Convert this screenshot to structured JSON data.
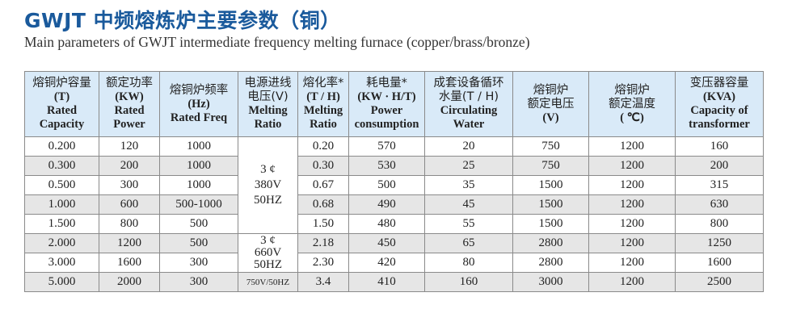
{
  "title": "GWJT 中频熔炼炉主要参数（铜）",
  "subtitle": "Main parameters of GWJT intermediate frequency melting furnace (copper/brass/bronze)",
  "table": {
    "headers": [
      {
        "cn": "熔铜炉容量",
        "lines": [
          "(T)",
          "Rated",
          "Capacity"
        ]
      },
      {
        "cn": "额定功率",
        "lines": [
          "(KW)",
          "Rated",
          "Power"
        ]
      },
      {
        "cn": "熔铜炉频率",
        "lines": [
          "(Hz)",
          "Rated Freq"
        ]
      },
      {
        "cn": "电源进线",
        "lines": [
          "电压(V)",
          "Melting",
          "Ratio"
        ]
      },
      {
        "cn": "熔化率*",
        "lines": [
          "(T / H)",
          "Melting",
          "Ratio"
        ]
      },
      {
        "cn": "耗电量*",
        "lines": [
          "(KW · H/T)",
          "Power",
          "consumption"
        ]
      },
      {
        "cn": "成套设备循环",
        "lines": [
          "水量(T / H)",
          "Circulating",
          "Water"
        ]
      },
      {
        "cn": "熔铜炉",
        "lines": [
          "额定电压",
          "(V)"
        ]
      },
      {
        "cn": "熔铜炉",
        "lines": [
          "额定温度",
          "( ℃)"
        ]
      },
      {
        "cn": "变压器容量",
        "lines": [
          "(KVA)",
          "Capacity of",
          "transformer"
        ]
      }
    ],
    "rows": [
      [
        "0.200",
        "120",
        "1000",
        "0.20",
        "570",
        "20",
        "750",
        "1200",
        "160"
      ],
      [
        "0.300",
        "200",
        "1000",
        "0.30",
        "530",
        "25",
        "750",
        "1200",
        "200"
      ],
      [
        "0.500",
        "300",
        "1000",
        "0.67",
        "500",
        "35",
        "1500",
        "1200",
        "315"
      ],
      [
        "1.000",
        "600",
        "500-1000",
        "0.68",
        "490",
        "45",
        "1500",
        "1200",
        "630"
      ],
      [
        "1.500",
        "800",
        "500",
        "1.50",
        "480",
        "55",
        "1500",
        "1200",
        "800"
      ],
      [
        "2.000",
        "1200",
        "500",
        "2.18",
        "450",
        "65",
        "2800",
        "1200",
        "1250"
      ],
      [
        "3.000",
        "1600",
        "300",
        "2.30",
        "420",
        "80",
        "2800",
        "1200",
        "1600"
      ],
      [
        "5.000",
        "2000",
        "300",
        "3.4",
        "410",
        "160",
        "3000",
        "1200",
        "2500"
      ]
    ],
    "voltage_groups": [
      {
        "rows": 5,
        "lines": [
          "3 ¢",
          "380V",
          "50HZ"
        ]
      },
      {
        "rows": 2,
        "lines": [
          "3 ¢",
          "660V",
          "50HZ"
        ]
      },
      {
        "rows": 1,
        "lines": [
          "750V/50HZ"
        ]
      }
    ]
  },
  "colors": {
    "title": "#1a5a9c",
    "header_bg": "#d9eaf8",
    "alt_row_bg": "#e6e6e6"
  }
}
